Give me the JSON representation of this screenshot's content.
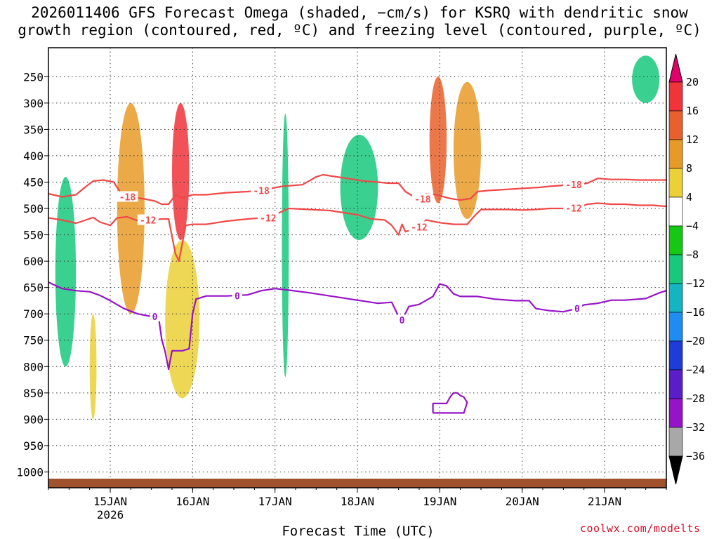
{
  "header": {
    "title_line1": "2026011406 GFS Forecast Omega (shaded, −cm/s) for KSRQ with dendritic snow",
    "title_line2": "growth region (contoured, red, ºC) and freezing level (contoured, purple, ºC)"
  },
  "footer": {
    "xlabel": "Forecast Time (UTC)",
    "credit": "coolwx.com/modelts"
  },
  "chart_data": {
    "type": "heatmap",
    "title": "2026011406 GFS Forecast Omega (shaded, −cm/s) for KSRQ with dendritic snow growth region (contoured, red, ºC) and freezing level (contoured, purple, ºC)",
    "xlabel": "Forecast Time (UTC)",
    "ylabel": "",
    "x_range_hours_since_start": [
      0,
      180
    ],
    "y_range_hpa": [
      195,
      1030
    ],
    "y_ticks": [
      250,
      300,
      350,
      400,
      450,
      500,
      550,
      600,
      650,
      700,
      750,
      800,
      850,
      900,
      950,
      1000
    ],
    "x_ticks": [
      {
        "label": "15JAN",
        "label2": "2026",
        "hour": 18
      },
      {
        "label": "16JAN",
        "label2": "",
        "hour": 42
      },
      {
        "label": "17JAN",
        "label2": "",
        "hour": 66
      },
      {
        "label": "18JAN",
        "label2": "",
        "hour": 90
      },
      {
        "label": "19JAN",
        "label2": "",
        "hour": 114
      },
      {
        "label": "20JAN",
        "label2": "",
        "hour": 138
      },
      {
        "label": "21JAN",
        "label2": "",
        "hour": 162
      }
    ],
    "colorbar": {
      "levels": [
        "20",
        "16",
        "12",
        "8",
        "4",
        "−4",
        "−8",
        "−12",
        "−16",
        "−20",
        "−24",
        "−28",
        "−32",
        "−36"
      ],
      "colors": [
        "#e0006a",
        "#f0343a",
        "#e8602c",
        "#e89a28",
        "#ecd038",
        "#ffffff",
        "#14c814",
        "#18c87c",
        "#14b4c0",
        "#1e8cf0",
        "#1e3cd8",
        "#5a1ec8",
        "#9614c8",
        "#a8a8a8",
        "#000000"
      ],
      "max_arrow_color": "#e0006a",
      "min_arrow_color": "#000000"
    },
    "series": [
      {
        "name": "-18 C isotherm",
        "color": "#f04848",
        "label": "-18",
        "label_hours": [
          23,
          62,
          109,
          153
        ],
        "points": [
          [
            0,
            472
          ],
          [
            4,
            478
          ],
          [
            8,
            474
          ],
          [
            11,
            458
          ],
          [
            13,
            448
          ],
          [
            16,
            446
          ],
          [
            19,
            450
          ],
          [
            21,
            470
          ],
          [
            24,
            478
          ],
          [
            28,
            482
          ],
          [
            31,
            486
          ],
          [
            33,
            492
          ],
          [
            35,
            492
          ],
          [
            37,
            474
          ],
          [
            39,
            480
          ],
          [
            42,
            474
          ],
          [
            46,
            474
          ],
          [
            52,
            470
          ],
          [
            58,
            468
          ],
          [
            62,
            466
          ],
          [
            68,
            458
          ],
          [
            74,
            455
          ],
          [
            78,
            440
          ],
          [
            80,
            436
          ],
          [
            84,
            440
          ],
          [
            88,
            444
          ],
          [
            92,
            448
          ],
          [
            96,
            450
          ],
          [
            99,
            452
          ],
          [
            102,
            452
          ],
          [
            104,
            468
          ],
          [
            106,
            476
          ],
          [
            108,
            482
          ],
          [
            110,
            472
          ],
          [
            113,
            474
          ],
          [
            117,
            481
          ],
          [
            120,
            484
          ],
          [
            123,
            481
          ],
          [
            125,
            468
          ],
          [
            128,
            466
          ],
          [
            133,
            464
          ],
          [
            138,
            462
          ],
          [
            143,
            460
          ],
          [
            146,
            458
          ],
          [
            150,
            456
          ],
          [
            154,
            455
          ],
          [
            157,
            452
          ],
          [
            160,
            443
          ],
          [
            164,
            445
          ],
          [
            168,
            445
          ],
          [
            172,
            446
          ],
          [
            176,
            446
          ],
          [
            180,
            446
          ]
        ]
      },
      {
        "name": "-12 C isotherm",
        "color": "#f04848",
        "label": "-12",
        "label_hours": [
          29,
          64,
          108,
          153
        ],
        "points": [
          [
            0,
            518
          ],
          [
            4,
            522
          ],
          [
            8,
            528
          ],
          [
            10,
            524
          ],
          [
            13,
            517
          ],
          [
            15,
            526
          ],
          [
            18,
            532
          ],
          [
            20,
            518
          ],
          [
            23,
            516
          ],
          [
            27,
            526
          ],
          [
            30,
            522
          ],
          [
            33,
            520
          ],
          [
            35,
            520
          ],
          [
            37,
            586
          ],
          [
            38,
            600
          ],
          [
            40,
            532
          ],
          [
            42,
            530
          ],
          [
            46,
            530
          ],
          [
            52,
            524
          ],
          [
            58,
            520
          ],
          [
            62,
            518
          ],
          [
            66,
            512
          ],
          [
            70,
            500
          ],
          [
            76,
            502
          ],
          [
            82,
            504
          ],
          [
            86,
            508
          ],
          [
            90,
            512
          ],
          [
            94,
            520
          ],
          [
            98,
            522
          ],
          [
            100,
            532
          ],
          [
            102,
            550
          ],
          [
            103,
            530
          ],
          [
            104,
            544
          ],
          [
            106,
            540
          ],
          [
            108,
            535
          ],
          [
            110,
            522
          ],
          [
            114,
            527
          ],
          [
            118,
            530
          ],
          [
            122,
            530
          ],
          [
            124,
            515
          ],
          [
            126,
            502
          ],
          [
            130,
            502
          ],
          [
            134,
            502
          ],
          [
            138,
            503
          ],
          [
            142,
            502
          ],
          [
            146,
            500
          ],
          [
            150,
            500
          ],
          [
            154,
            499
          ],
          [
            157,
            492
          ],
          [
            160,
            490
          ],
          [
            164,
            492
          ],
          [
            168,
            492
          ],
          [
            172,
            494
          ],
          [
            176,
            494
          ],
          [
            180,
            496
          ]
        ]
      },
      {
        "name": "0 C freezing level",
        "color": "#9614c8",
        "label": "0",
        "label_hours": [
          31,
          55,
          103,
          154
        ],
        "points": [
          [
            0,
            640
          ],
          [
            4,
            652
          ],
          [
            8,
            656
          ],
          [
            12,
            658
          ],
          [
            15,
            665
          ],
          [
            18,
            675
          ],
          [
            22,
            690
          ],
          [
            26,
            700
          ],
          [
            30,
            705
          ],
          [
            32,
            702
          ],
          [
            33,
            748
          ],
          [
            34,
            772
          ],
          [
            35,
            805
          ],
          [
            36,
            770
          ],
          [
            39,
            770
          ],
          [
            41,
            766
          ],
          [
            42,
            700
          ],
          [
            43,
            672
          ],
          [
            46,
            666
          ],
          [
            52,
            666
          ],
          [
            58,
            664
          ],
          [
            62,
            656
          ],
          [
            66,
            652
          ],
          [
            70,
            655
          ],
          [
            76,
            660
          ],
          [
            82,
            666
          ],
          [
            86,
            670
          ],
          [
            92,
            676
          ],
          [
            96,
            680
          ],
          [
            100,
            678
          ],
          [
            102,
            705
          ],
          [
            103,
            712
          ],
          [
            105,
            686
          ],
          [
            108,
            682
          ],
          [
            112,
            667
          ],
          [
            114,
            643
          ],
          [
            116,
            647
          ],
          [
            118,
            662
          ],
          [
            120,
            667
          ],
          [
            125,
            667
          ],
          [
            130,
            672
          ],
          [
            136,
            675
          ],
          [
            140,
            675
          ],
          [
            142,
            690
          ],
          [
            146,
            694
          ],
          [
            150,
            696
          ],
          [
            154,
            690
          ],
          [
            156,
            683
          ],
          [
            160,
            680
          ],
          [
            164,
            674
          ],
          [
            168,
            674
          ],
          [
            174,
            671
          ],
          [
            178,
            660
          ],
          [
            180,
            656
          ]
        ]
      },
      {
        "name": "0 C freezing level (low-level closed contour)",
        "color": "#9614c8",
        "label": "",
        "label_hours": [],
        "points": [
          [
            112,
            888
          ],
          [
            112,
            870
          ],
          [
            116,
            870
          ],
          [
            117,
            858
          ],
          [
            118,
            850
          ],
          [
            119,
            850
          ],
          [
            120,
            855
          ],
          [
            121,
            858
          ],
          [
            122,
            868
          ],
          [
            121,
            888
          ],
          [
            116,
            888
          ],
          [
            112,
            888
          ]
        ]
      }
    ],
    "omega_shading_features": [
      {
        "hours": [
          2,
          8
        ],
        "hpa": [
          440,
          800
        ],
        "value": -8
      },
      {
        "hours": [
          12,
          14
        ],
        "hpa": [
          700,
          900
        ],
        "value": 8
      },
      {
        "hours": [
          20,
          28
        ],
        "hpa": [
          300,
          700
        ],
        "value": 12
      },
      {
        "hours": [
          36,
          41
        ],
        "hpa": [
          300,
          560
        ],
        "value": 20
      },
      {
        "hours": [
          34,
          44
        ],
        "hpa": [
          560,
          860
        ],
        "value": 8
      },
      {
        "hours": [
          68,
          70
        ],
        "hpa": [
          320,
          820
        ],
        "value": -8
      },
      {
        "hours": [
          85,
          96
        ],
        "hpa": [
          360,
          560
        ],
        "value": -8
      },
      {
        "hours": [
          111,
          116
        ],
        "hpa": [
          250,
          490
        ],
        "value": 16
      },
      {
        "hours": [
          118,
          126
        ],
        "hpa": [
          260,
          520
        ],
        "value": 12
      },
      {
        "hours": [
          170,
          178
        ],
        "hpa": [
          210,
          300
        ],
        "value": -8
      }
    ]
  }
}
